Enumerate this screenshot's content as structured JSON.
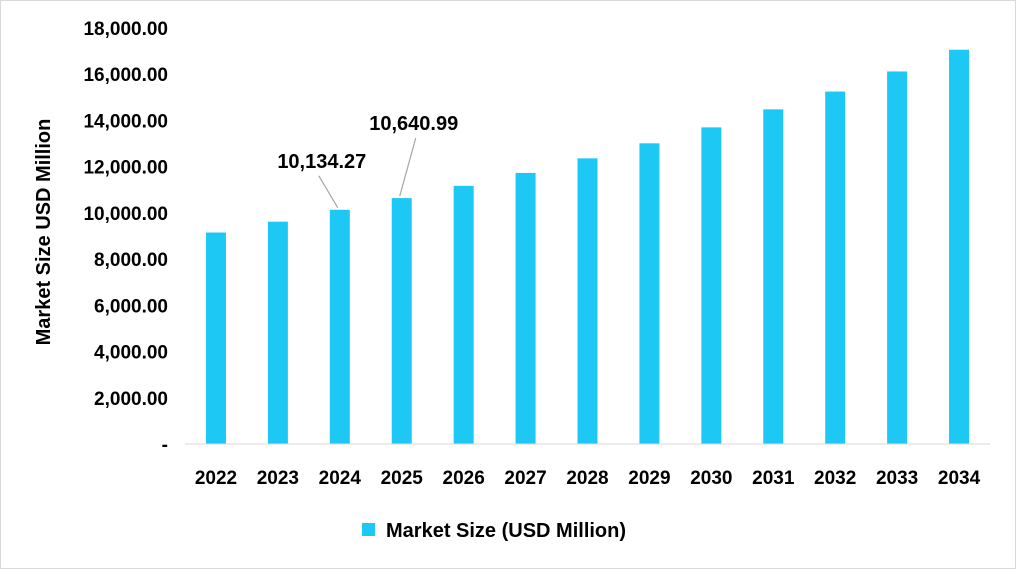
{
  "chart_data": {
    "type": "bar",
    "title": "",
    "xlabel": "",
    "ylabel": "Market Size USD Million",
    "ylim": [
      0,
      18000
    ],
    "yticks": [
      0,
      2000,
      4000,
      6000,
      8000,
      10000,
      12000,
      14000,
      16000,
      18000
    ],
    "ytick_labels": [
      "-",
      "2,000.00",
      "4,000.00",
      "6,000.00",
      "8,000.00",
      "10,000.00",
      "12,000.00",
      "14,000.00",
      "16,000.00",
      "18,000.00"
    ],
    "categories": [
      "2022",
      "2023",
      "2024",
      "2025",
      "2026",
      "2027",
      "2028",
      "2029",
      "2030",
      "2031",
      "2032",
      "2033",
      "2034"
    ],
    "series": [
      {
        "name": "Market Size (USD Million)",
        "color": "#1EC8F5",
        "values": [
          9150,
          9620,
          10134.27,
          10640.99,
          11170,
          11730,
          12360,
          13010,
          13700,
          14480,
          15250,
          16120,
          17060
        ]
      }
    ],
    "annotations": [
      {
        "category_index": 2,
        "text": "10,134.27"
      },
      {
        "category_index": 3,
        "text": "10,640.99"
      }
    ],
    "grid": false,
    "legend_position": "bottom"
  }
}
